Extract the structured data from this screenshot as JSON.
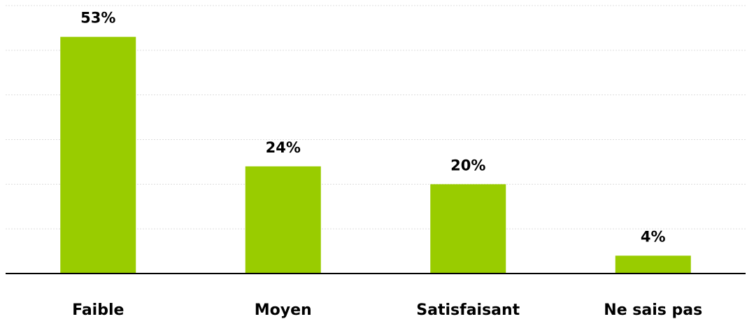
{
  "chart_data": {
    "type": "bar",
    "categories": [
      "Faible",
      "Moyen",
      "Satisfaisant",
      "Ne sais pas"
    ],
    "values": [
      53,
      24,
      20,
      4
    ],
    "value_labels": [
      "53%",
      "24%",
      "20%",
      "4%"
    ],
    "title": "",
    "xlabel": "",
    "ylabel": "",
    "ylim": [
      0,
      60
    ],
    "grid": true,
    "bar_color": "#99CC00"
  }
}
